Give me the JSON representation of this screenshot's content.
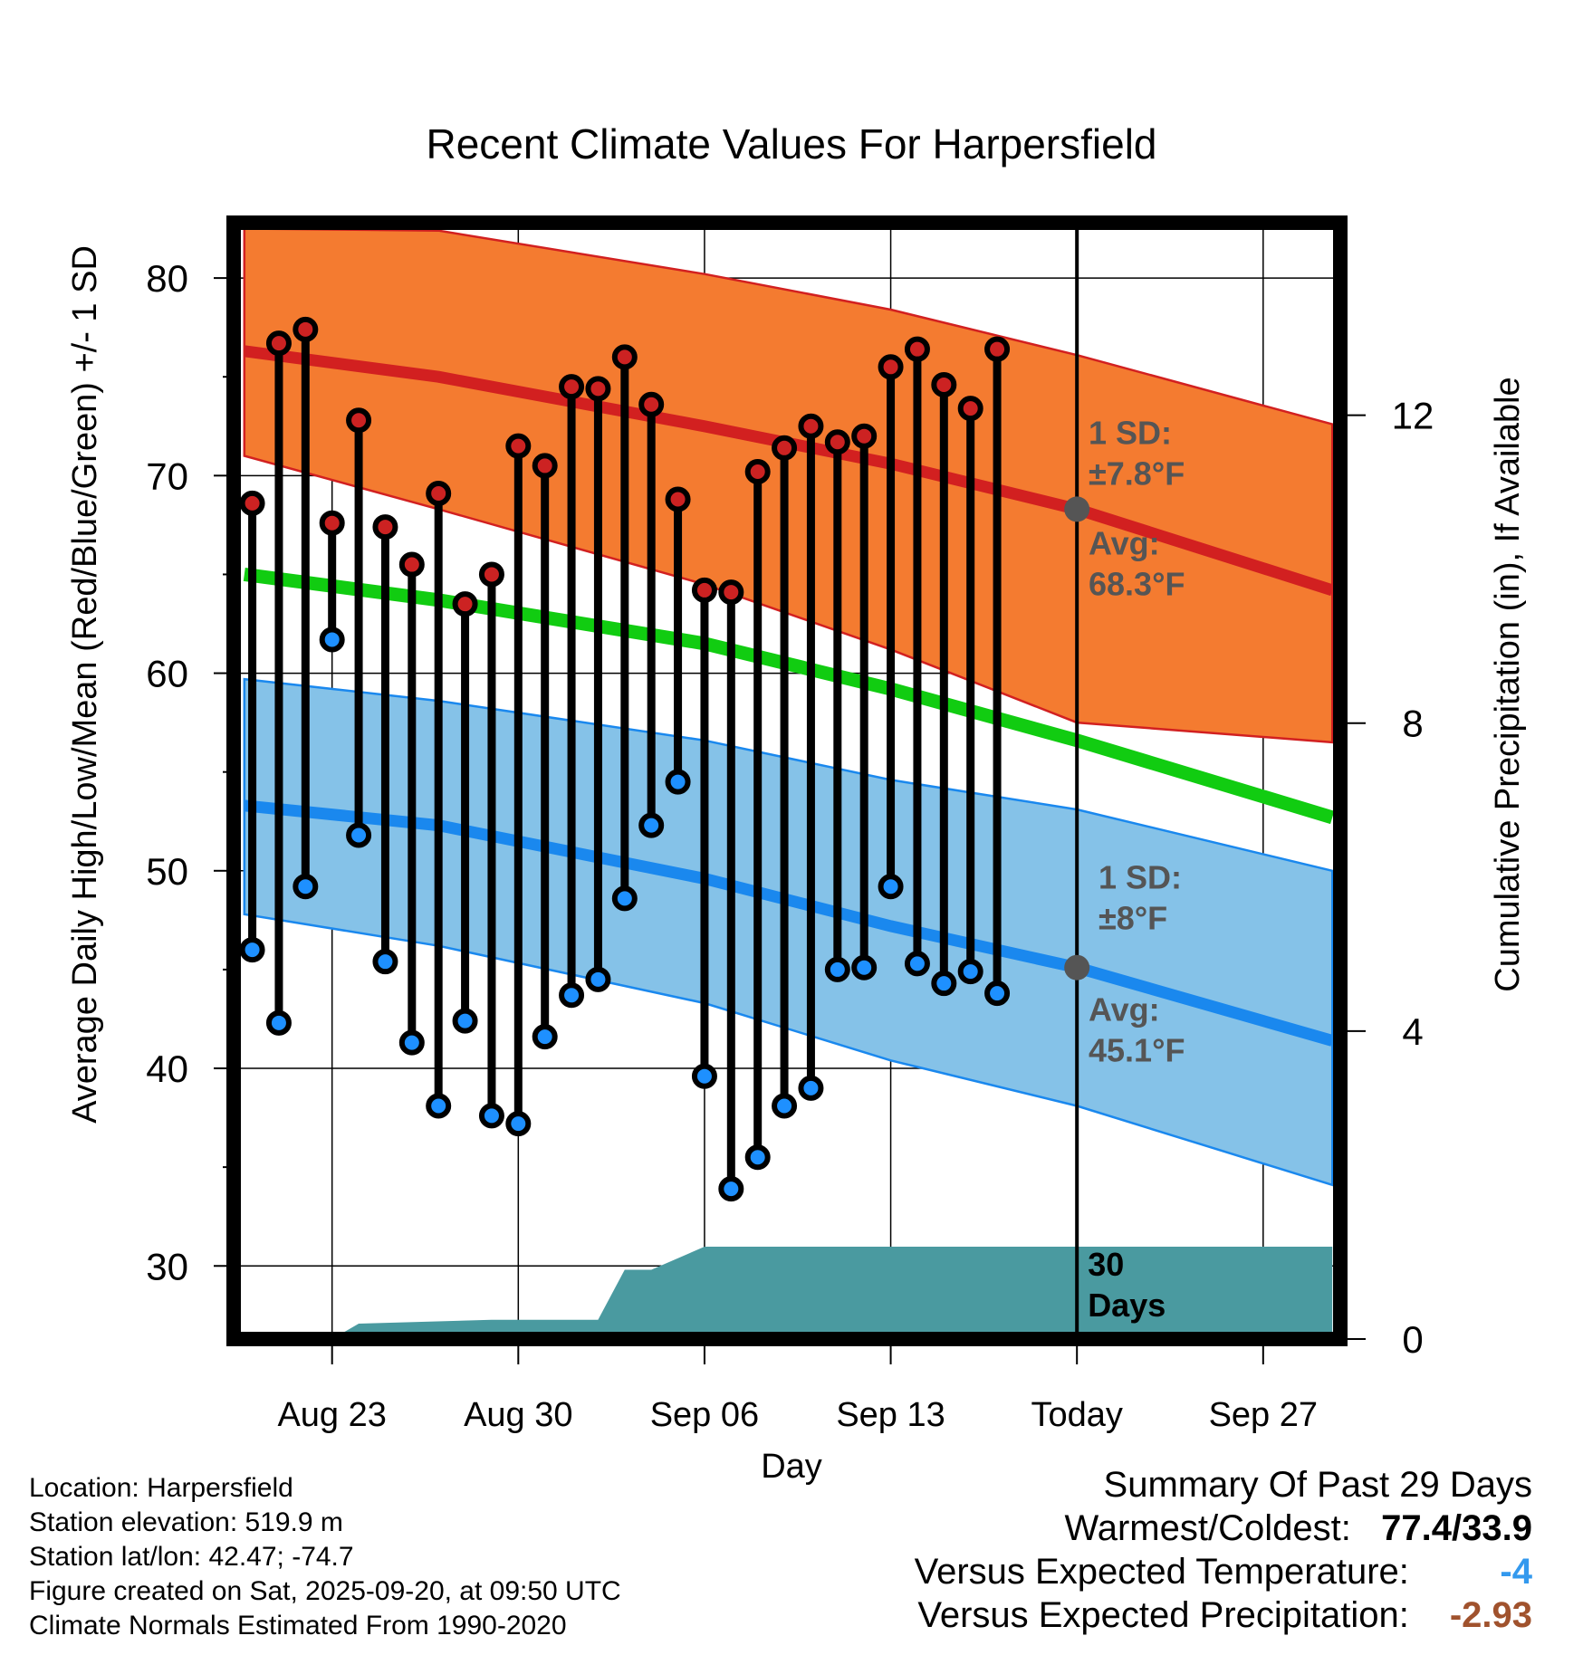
{
  "chart_data": {
    "type": "line",
    "title": "Recent Climate Values For Harpersfield",
    "xlabel": "Day",
    "ylabel": "Average Daily High/Low/Mean (Red/Blue/Green) +/- 1 SD",
    "y2label": "Cumulative Precipitation (in), If Available",
    "ylim": [
      26.3,
      82.8
    ],
    "y2lim": [
      0,
      14.5
    ],
    "yticks": [
      30,
      40,
      50,
      60,
      70,
      80
    ],
    "y2ticks": [
      0,
      4,
      8,
      12
    ],
    "xlim": [
      -2.7,
      38.9
    ],
    "xticks": [
      {
        "day": 1,
        "label": "Aug 23"
      },
      {
        "day": 8,
        "label": "Aug 30"
      },
      {
        "day": 15,
        "label": "Sep 06"
      },
      {
        "day": 22,
        "label": "Sep 13"
      },
      {
        "day": 29,
        "label": "Today"
      },
      {
        "day": 36,
        "label": "Sep 27"
      }
    ],
    "normals_x": [
      -2.3,
      5,
      15,
      22,
      29,
      38.6
    ],
    "normal_high": [
      76.3,
      75.0,
      72.5,
      70.6,
      68.3,
      64.2
    ],
    "normal_high_upper": [
      82.5,
      82.4,
      80.2,
      78.4,
      76.1,
      72.6
    ],
    "normal_high_lower": [
      71.0,
      68.3,
      64.5,
      61.2,
      57.5,
      56.5
    ],
    "normal_mean": [
      65.0,
      63.7,
      61.5,
      59.2,
      56.6,
      52.7
    ],
    "normal_low": [
      53.3,
      52.3,
      49.6,
      47.2,
      45.1,
      41.4
    ],
    "normal_low_upper": [
      59.7,
      58.6,
      56.6,
      54.6,
      53.1,
      50.0
    ],
    "normal_low_lower": [
      47.8,
      46.2,
      43.3,
      40.4,
      38.1,
      34.1
    ],
    "daily_x": [
      -2,
      -1,
      0,
      1,
      2,
      3,
      4,
      5,
      6,
      7,
      8,
      9,
      10,
      11,
      12,
      13,
      14,
      15,
      16,
      17,
      18,
      19,
      20,
      21,
      22,
      23,
      24,
      25,
      26
    ],
    "daily_high": [
      68.6,
      76.7,
      77.4,
      67.6,
      72.8,
      67.4,
      65.5,
      69.1,
      63.5,
      65.0,
      71.5,
      70.5,
      74.5,
      74.4,
      76.0,
      73.6,
      68.8,
      64.2,
      64.1,
      70.2,
      71.4,
      72.5,
      71.7,
      72.0,
      75.5,
      76.4,
      74.6,
      73.4,
      76.4
    ],
    "daily_low": [
      46.0,
      42.3,
      49.2,
      61.7,
      51.8,
      45.4,
      41.3,
      38.1,
      42.4,
      37.6,
      37.2,
      41.6,
      43.7,
      44.5,
      48.6,
      52.3,
      54.5,
      39.6,
      33.9,
      35.5,
      38.1,
      39.0,
      45.0,
      45.1,
      49.2,
      45.3,
      44.3,
      44.9,
      43.8
    ],
    "precip_x": [
      -2.3,
      1.0,
      2.0,
      7.0,
      11.0,
      12.0,
      13.0,
      14.0,
      15.0,
      38.6
    ],
    "precip_cum": [
      0.0,
      0.0,
      0.2,
      0.25,
      0.25,
      0.9,
      0.9,
      1.05,
      1.2,
      1.2
    ],
    "annotations": {
      "high_sd": [
        "1 SD:",
        "±7.8°F"
      ],
      "high_avg": [
        "Avg:",
        "68.3°F"
      ],
      "low_sd": [
        "1 SD:",
        "±8°F"
      ],
      "low_avg": [
        "Avg:",
        "45.1°F"
      ],
      "period": [
        "30",
        "Days"
      ]
    },
    "today_day": 29,
    "today_high_avg": 68.3,
    "today_low_avg": 45.1
  },
  "info": {
    "location": "Location: Harpersfield",
    "elevation": "Station elevation: 519.9 m",
    "latlon": "Station lat/lon: 42.47; -74.7",
    "created": "Figure created on Sat, 2025-09-20, at 09:50 UTC",
    "normals": "Climate Normals Estimated From 1990-2020"
  },
  "summary": {
    "heading": "Summary Of Past 29 Days",
    "warm_cold_label": "Warmest/Coldest:",
    "warm_cold_value": "77.4/33.9",
    "temp_label": "Versus Expected Temperature:",
    "temp_value": "-4",
    "precip_label": "Versus Expected Precipitation:",
    "precip_value": "-2.93"
  },
  "colors": {
    "high_band": "#f47b30",
    "high_line": "#d22020",
    "mean_line": "#11cc11",
    "low_band": "#85c2e8",
    "low_line": "#1a88ee",
    "precip": "#4a9aa0",
    "marker_high": "#cc2222",
    "marker_low": "#1e90ff",
    "annotation": "#555555",
    "temp_value": "#3399ee",
    "precip_value": "#a0522d"
  }
}
